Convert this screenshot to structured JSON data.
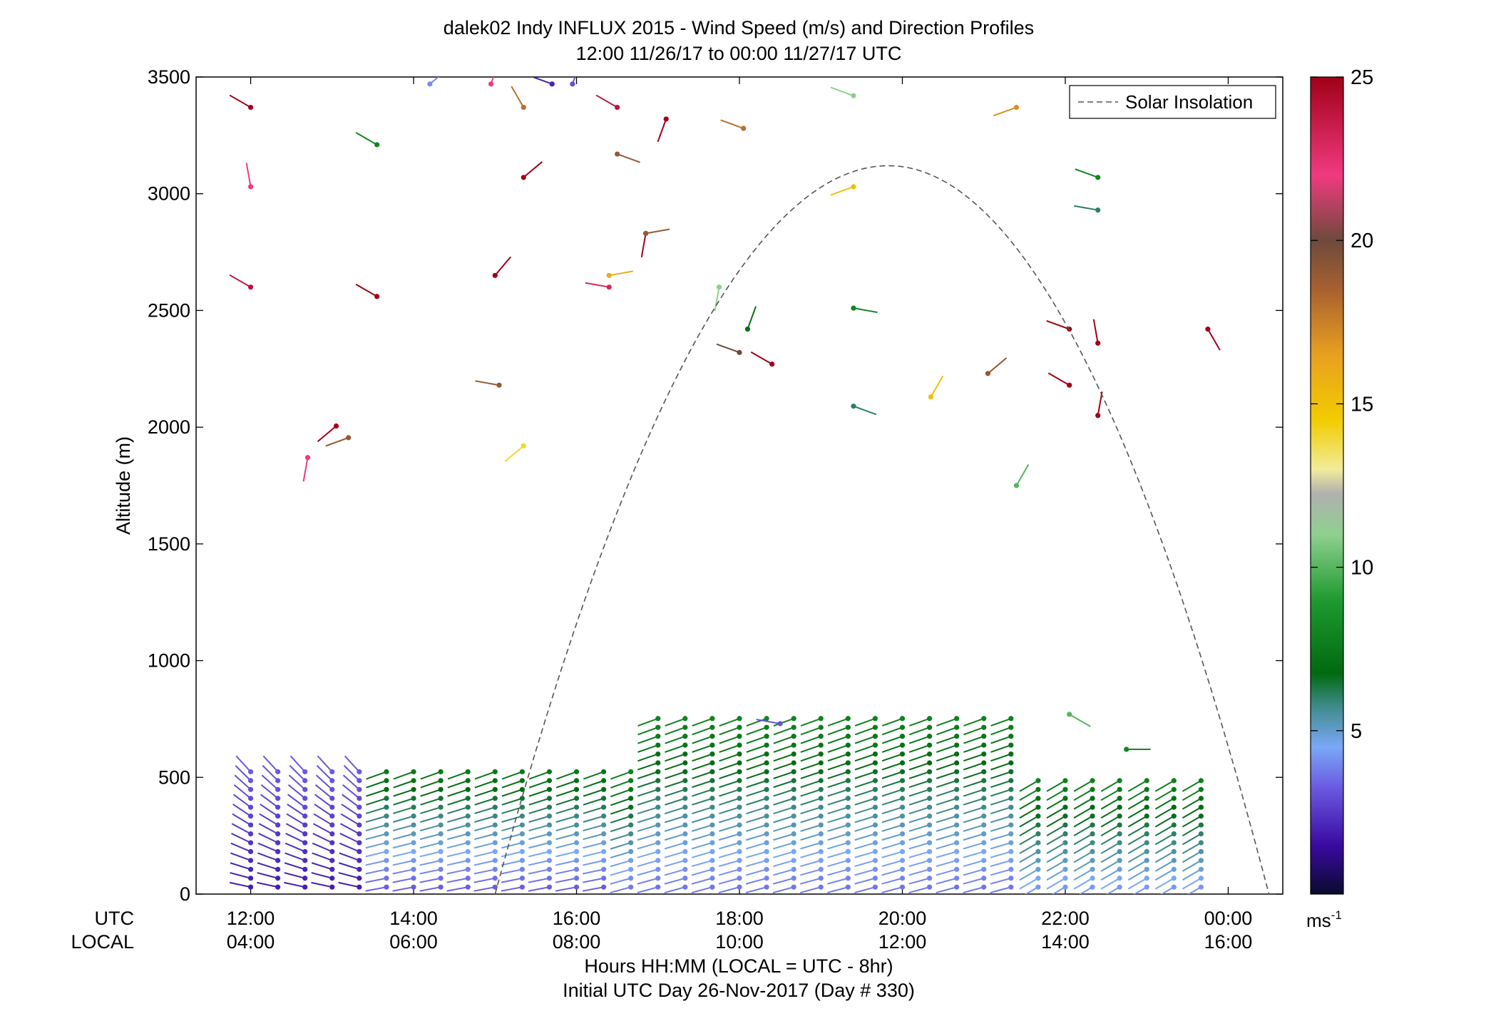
{
  "chart_data": {
    "type": "scatter",
    "title": "dalek02 Indy INFLUX 2015 - Wind Speed (m/s) and Direction Profiles",
    "subtitle": "12:00 11/26/17 to 00:00 11/27/17  UTC",
    "ylabel": "Altitude (m)",
    "xlabel": "Hours HH:MM  (LOCAL = UTC - 8hr)",
    "xlabel2": "Initial UTC Day 26-Nov-2017 (Day # 330)",
    "row_label_utc": "UTC",
    "row_label_local": "LOCAL",
    "xlim_hours_utc": [
      11.33,
      24.67
    ],
    "ylim": [
      0,
      3500
    ],
    "y_ticks": [
      0,
      500,
      1000,
      1500,
      2000,
      2500,
      3000,
      3500
    ],
    "x_ticks_utc": [
      "12:00",
      "14:00",
      "16:00",
      "18:00",
      "20:00",
      "22:00",
      "00:00"
    ],
    "x_ticks_local": [
      "04:00",
      "06:00",
      "08:00",
      "10:00",
      "12:00",
      "14:00",
      "16:00"
    ],
    "x_tick_hours": [
      12,
      14,
      16,
      18,
      20,
      22,
      24
    ],
    "legend": {
      "label": "Solar Insolation",
      "position": "top-right"
    },
    "colorbar": {
      "min": 0,
      "max": 25,
      "ticks": [
        5,
        10,
        15,
        20,
        25
      ],
      "unit": "ms-1"
    },
    "solar_insolation": {
      "start_hour": 15.0,
      "peak_hour": 19.83,
      "end_hour": 24.5,
      "peak_altitude": 3120
    },
    "isolated_barbs": [
      {
        "t": 12.0,
        "z": 3370,
        "s": 25,
        "dir": 300
      },
      {
        "t": 12.0,
        "z": 3030,
        "s": 22,
        "dir": 350
      },
      {
        "t": 12.0,
        "z": 2600,
        "s": 24,
        "dir": 300
      },
      {
        "t": 12.7,
        "z": 1870,
        "s": 22,
        "dir": 190
      },
      {
        "t": 13.05,
        "z": 2005,
        "s": 25,
        "dir": 230
      },
      {
        "t": 13.2,
        "z": 1955,
        "s": 19,
        "dir": 250
      },
      {
        "t": 13.55,
        "z": 3210,
        "s": 8,
        "dir": 300
      },
      {
        "t": 13.55,
        "z": 2560,
        "s": 25,
        "dir": 300
      },
      {
        "t": 15.05,
        "z": 2180,
        "s": 19,
        "dir": 280
      },
      {
        "t": 15.35,
        "z": 1920,
        "s": 14,
        "dir": 230
      },
      {
        "t": 15.0,
        "z": 2650,
        "s": 25,
        "dir": 40
      },
      {
        "t": 15.35,
        "z": 3070,
        "s": 25,
        "dir": 50
      },
      {
        "t": 15.35,
        "z": 3370,
        "s": 18,
        "dir": 330
      },
      {
        "t": 15.7,
        "z": 3470,
        "s": 2,
        "dir": 290
      },
      {
        "t": 16.4,
        "z": 2650,
        "s": 16,
        "dir": 80
      },
      {
        "t": 16.4,
        "z": 2600,
        "s": 23,
        "dir": 280
      },
      {
        "t": 16.5,
        "z": 3170,
        "s": 19,
        "dir": 110
      },
      {
        "t": 16.5,
        "z": 3370,
        "s": 24,
        "dir": 300
      },
      {
        "t": 16.85,
        "z": 2830,
        "s": 25,
        "dir": 190
      },
      {
        "t": 16.85,
        "z": 2830,
        "s": 19,
        "dir": 80
      },
      {
        "t": 17.1,
        "z": 3320,
        "s": 25,
        "dir": 200
      },
      {
        "t": 17.75,
        "z": 2600,
        "s": 11,
        "dir": 190
      },
      {
        "t": 18.1,
        "z": 2420,
        "s": 7,
        "dir": 20
      },
      {
        "t": 18.05,
        "z": 3280,
        "s": 18,
        "dir": 290
      },
      {
        "t": 18.0,
        "z": 2320,
        "s": 20,
        "dir": 290
      },
      {
        "t": 18.4,
        "z": 2270,
        "s": 25,
        "dir": 300
      },
      {
        "t": 18.5,
        "z": 730,
        "s": 3,
        "dir": 280
      },
      {
        "t": 19.4,
        "z": 3420,
        "s": 11,
        "dir": 290
      },
      {
        "t": 19.4,
        "z": 3030,
        "s": 15,
        "dir": 250
      },
      {
        "t": 19.4,
        "z": 2510,
        "s": 8,
        "dir": 100
      },
      {
        "t": 19.4,
        "z": 2090,
        "s": 6,
        "dir": 110
      },
      {
        "t": 20.35,
        "z": 2130,
        "s": 15,
        "dir": 30
      },
      {
        "t": 21.05,
        "z": 2230,
        "s": 19,
        "dir": 50
      },
      {
        "t": 21.4,
        "z": 3370,
        "s": 17,
        "dir": 250
      },
      {
        "t": 21.4,
        "z": 1750,
        "s": 10,
        "dir": 30
      },
      {
        "t": 22.05,
        "z": 2420,
        "s": 25,
        "dir": 290
      },
      {
        "t": 22.05,
        "z": 2180,
        "s": 25,
        "dir": 300
      },
      {
        "t": 22.05,
        "z": 770,
        "s": 10,
        "dir": 120
      },
      {
        "t": 22.4,
        "z": 3070,
        "s": 8,
        "dir": 290
      },
      {
        "t": 22.4,
        "z": 2930,
        "s": 6,
        "dir": 280
      },
      {
        "t": 22.4,
        "z": 2360,
        "s": 25,
        "dir": 350
      },
      {
        "t": 22.4,
        "z": 2050,
        "s": 25,
        "dir": 10
      },
      {
        "t": 22.75,
        "z": 620,
        "s": 8,
        "dir": 90
      },
      {
        "t": 23.75,
        "z": 2420,
        "s": 25,
        "dir": 150
      },
      {
        "t": 14.2,
        "z": 3470,
        "s": 4,
        "dir": 50
      },
      {
        "t": 14.95,
        "z": 3470,
        "s": 22,
        "dir": 20
      },
      {
        "t": 15.95,
        "z": 3470,
        "s": 3,
        "dir": 20
      }
    ]
  }
}
